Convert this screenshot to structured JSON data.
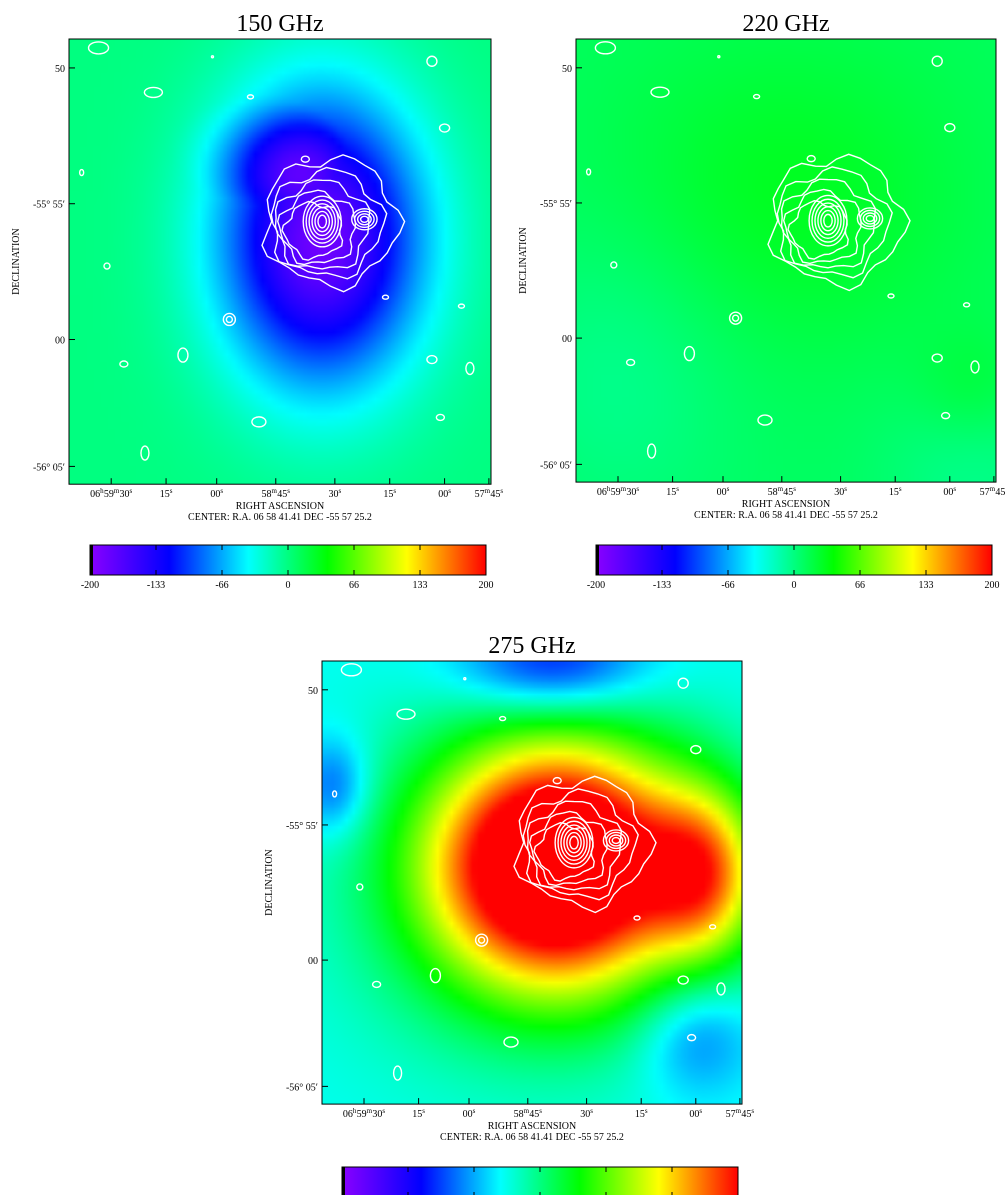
{
  "panels": [
    {
      "title": "150 GHz",
      "ylabel": "DECLINATION",
      "xlabel": "RIGHT ASCENSION",
      "center_text": "CENTER:  R.A. 06 58 41.41    DEC  -55 57 25.2",
      "map": {
        "background": 0,
        "blobs": [
          {
            "value": -185,
            "shape": "egg"
          }
        ]
      }
    },
    {
      "title": "220 GHz",
      "ylabel": "DECLINATION",
      "xlabel": "RIGHT ASCENSION",
      "center_text": "CENTER:  R.A. 06 58 41.41    DEC  -55 57 25.2",
      "map": {
        "background": 10,
        "blobs": [
          {
            "value": 20,
            "shape": "ring"
          },
          {
            "value": -15,
            "shape": "low-corners"
          }
        ]
      }
    },
    {
      "title": "275 GHz",
      "ylabel": "DECLINATION",
      "xlabel": "RIGHT ASCENSION",
      "center_text": "CENTER:  R.A. 06 58 41.41    DEC  -55 57 25.2",
      "map": {
        "background": -40,
        "blobs": [
          {
            "value": 200,
            "shape": "central-peak"
          },
          {
            "value": -150,
            "shape": "top-decrement"
          },
          {
            "value": -90,
            "shape": "lower-right-decrement"
          }
        ]
      }
    }
  ],
  "y_ticks": [
    "50",
    "-55° 55′",
    "00",
    "-56° 05′"
  ],
  "x_ticks": [
    {
      "main": "06",
      "sup1": "h",
      "mid": " 59",
      "sup2": "m",
      "tail": " 30",
      "sup3": "s"
    },
    {
      "main": "15",
      "sup3": "s"
    },
    {
      "main": "00",
      "sup3": "s"
    },
    {
      "main": "58",
      "sup2": "m",
      "tail": " 45",
      "sup3": "s"
    },
    {
      "main": "30",
      "sup3": "s"
    },
    {
      "main": "15",
      "sup3": "s"
    },
    {
      "main": "00",
      "sup3": "s"
    },
    {
      "main": "57",
      "sup2": "m",
      "tail": " 45",
      "sup3": "s"
    }
  ],
  "colorbar": {
    "min": -200,
    "max": 200,
    "tick_labels": [
      "-200",
      "-133",
      "-66",
      "0",
      "66",
      "133",
      "200"
    ],
    "colors": [
      "#8a00ff",
      "#0000ff",
      "#00ffff",
      "#00ff00",
      "#ffff00",
      "#ff0000"
    ]
  },
  "contour_color": "#ffffff"
}
